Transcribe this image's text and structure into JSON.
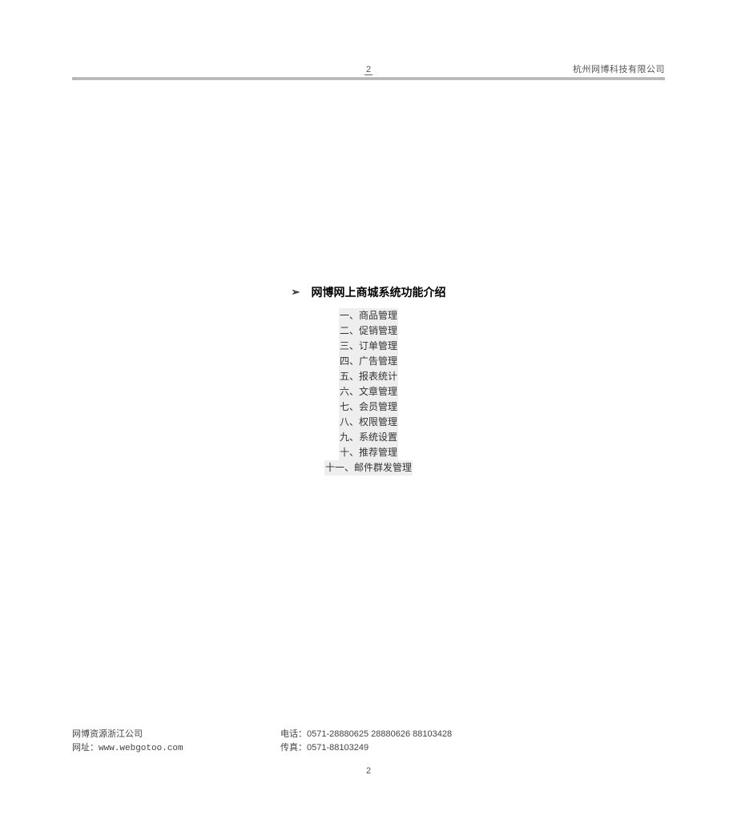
{
  "header": {
    "page_number": "2",
    "company": "杭州网博科技有限公司"
  },
  "content": {
    "bullet": "➢",
    "title": "网博网上商城系统功能介绍",
    "toc": [
      "一、商品管理",
      "二、促销管理",
      "三、订单管理",
      "四、广告管理",
      "五、报表统计",
      "六、文章管理",
      "七、会员管理",
      "八、权限管理",
      "九、系统设置",
      "十、推荐管理",
      "十一、邮件群发管理"
    ]
  },
  "footer": {
    "company": "网博资源浙江公司",
    "website_label": "网址：",
    "website": "www.webgotoo.com",
    "phone_label": "电话：",
    "phone": "0571-28880625 28880626 88103428",
    "fax_label": "传真：",
    "fax": "0571-88103249",
    "page_number": "2"
  },
  "colors": {
    "text": "#000000",
    "muted": "#555555",
    "highlight_bg": "#eeeeee",
    "rule": "#666666",
    "bg": "#ffffff"
  }
}
